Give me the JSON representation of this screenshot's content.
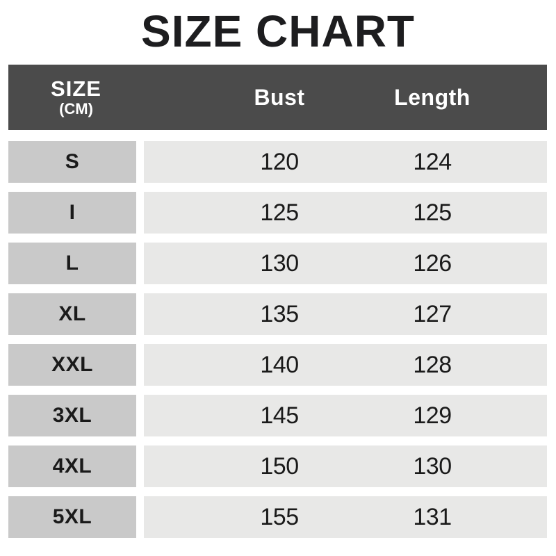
{
  "title": "SIZE CHART",
  "colors": {
    "header_bg": "#4b4b4b",
    "size_cell_bg": "#c9c9c9",
    "data_cell_bg": "#e8e8e7",
    "header_text": "#ffffff",
    "body_text": "#1a1a1a",
    "title_text": "#1d1d1f",
    "page_bg": "#ffffff"
  },
  "table": {
    "header": {
      "size_label": "SIZE",
      "size_unit": "(CM)",
      "col_bust": "Bust",
      "col_length": "Length"
    },
    "rows": [
      {
        "size": "S",
        "bust": "120",
        "length": "124"
      },
      {
        "size": "I",
        "bust": "125",
        "length": "125"
      },
      {
        "size": "L",
        "bust": "130",
        "length": "126"
      },
      {
        "size": "XL",
        "bust": "135",
        "length": "127"
      },
      {
        "size": "XXL",
        "bust": "140",
        "length": "128"
      },
      {
        "size": "3XL",
        "bust": "145",
        "length": "129"
      },
      {
        "size": "4XL",
        "bust": "150",
        "length": "130"
      },
      {
        "size": "5XL",
        "bust": "155",
        "length": "131"
      }
    ]
  },
  "chart_data": {
    "type": "table",
    "title": "SIZE CHART",
    "unit": "CM",
    "columns": [
      "SIZE (CM)",
      "Bust",
      "Length"
    ],
    "categories": [
      "S",
      "I",
      "L",
      "XL",
      "XXL",
      "3XL",
      "4XL",
      "5XL"
    ],
    "series": [
      {
        "name": "Bust",
        "values": [
          120,
          125,
          130,
          135,
          140,
          145,
          150,
          155
        ]
      },
      {
        "name": "Length",
        "values": [
          124,
          125,
          126,
          127,
          128,
          129,
          130,
          131
        ]
      }
    ]
  }
}
